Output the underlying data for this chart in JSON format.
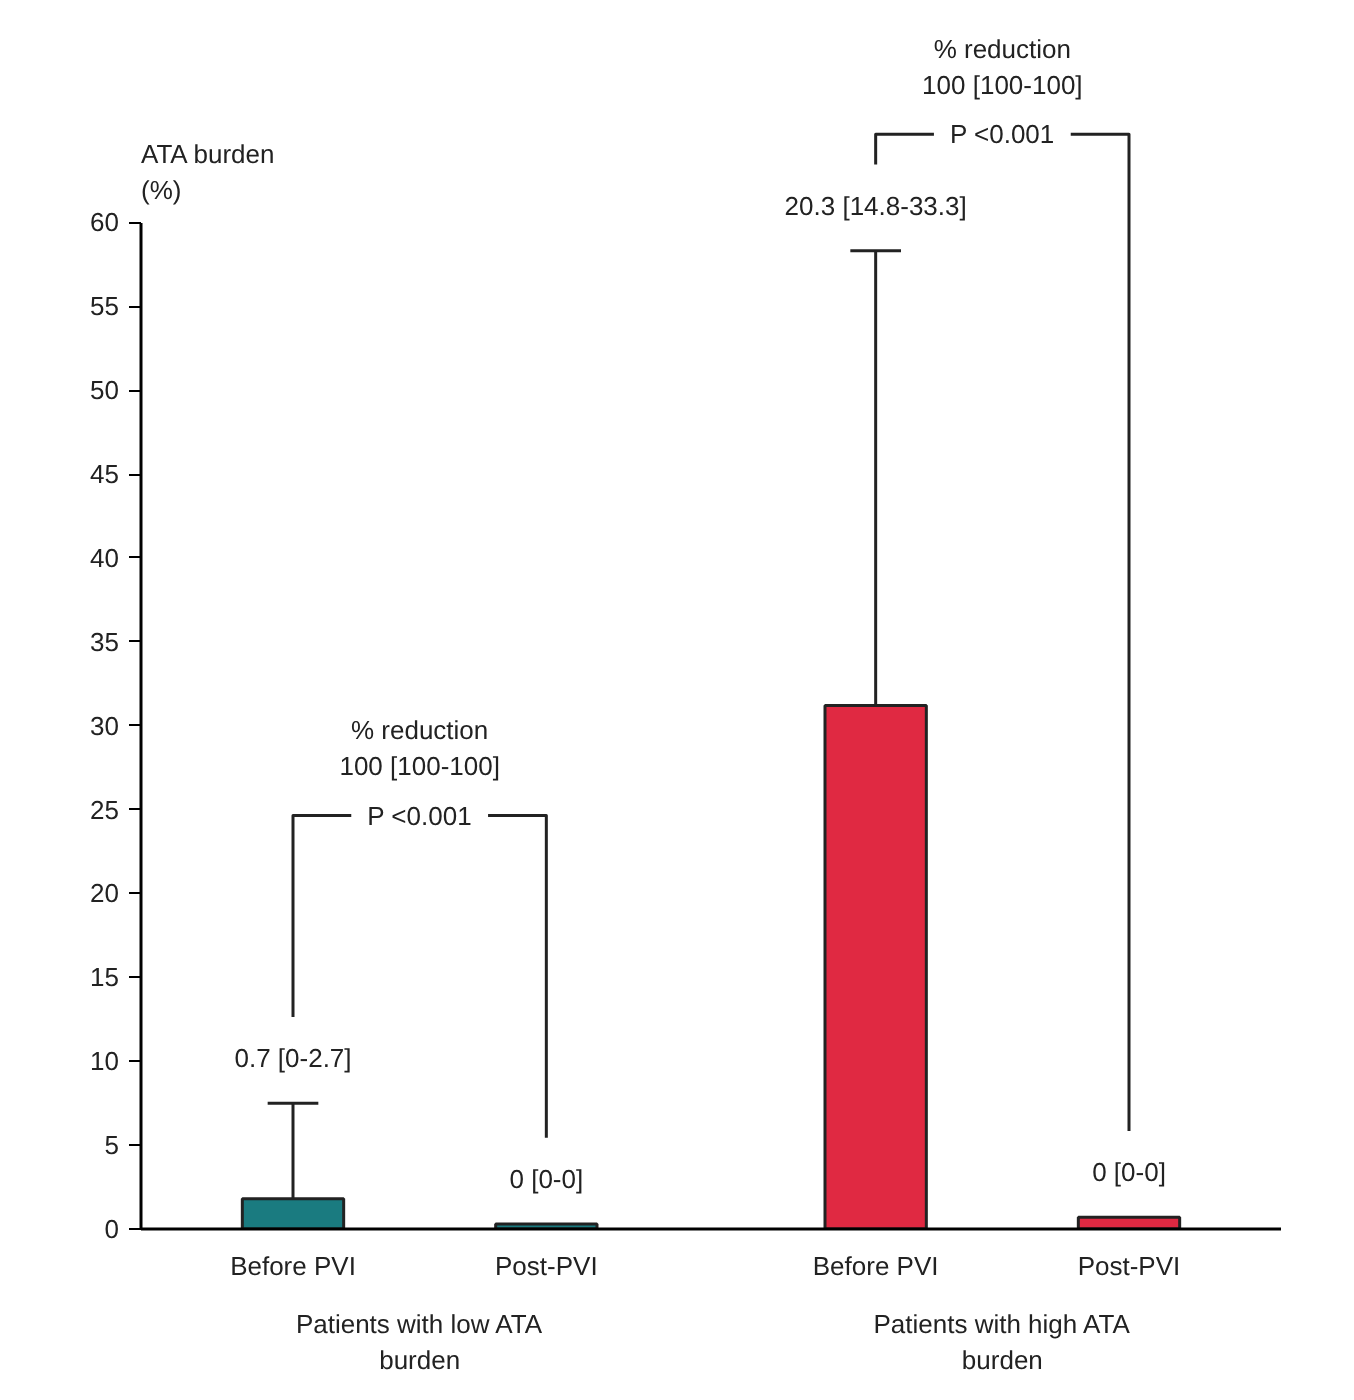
{
  "chart_data": {
    "type": "bar",
    "ylabel": "ATA burden\n(%)",
    "categories": [
      "Before PVI",
      "Post-PVI",
      "Before PVI",
      "Post-PVI"
    ],
    "values": [
      1.8,
      0.3,
      31.2,
      0.7
    ],
    "colors": [
      "#1a7b80",
      "#1a7b80",
      "#e02942",
      "#e02942"
    ],
    "errors": [
      [
        1.8,
        7.5
      ],
      null,
      [
        31.2,
        58.3
      ],
      null
    ],
    "ylim": [
      0,
      60
    ],
    "yticks": [
      0,
      5,
      10,
      15,
      20,
      25,
      30,
      35,
      40,
      45,
      50,
      55,
      60
    ],
    "annotations": [
      "Patients with low ATA\nburden",
      "Patients with high ATA\nburden",
      "0.7 [0-2.7]",
      "0 [0-0]",
      "20.3 [14.8-33.3]",
      "0 [0-0]",
      "% reduction\n100 [100-100]",
      "P <0.001",
      "% reduction\n100 [100-100]",
      "P <0.001"
    ],
    "grid": false
  }
}
